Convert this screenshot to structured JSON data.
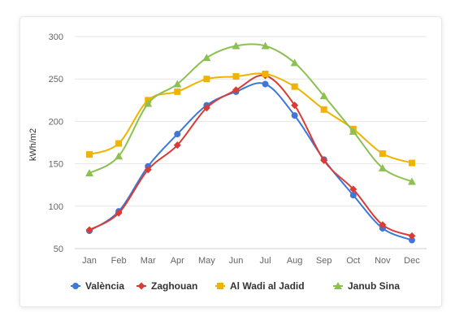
{
  "chart_data": {
    "type": "line",
    "title": "",
    "xlabel": "",
    "ylabel": "kWh/m2",
    "ylim": [
      50,
      300
    ],
    "yticks": [
      50,
      100,
      150,
      200,
      250,
      300
    ],
    "categories": [
      "Jan",
      "Feb",
      "Mar",
      "Apr",
      "May",
      "Jun",
      "Jul",
      "Aug",
      "Sep",
      "Oct",
      "Nov",
      "Dec"
    ],
    "grid": "horizontal",
    "legend": "bottom",
    "series": [
      {
        "name": "València",
        "color": "#3c78d8",
        "marker": "circle",
        "values": [
          71,
          94,
          147,
          185,
          219,
          235,
          244,
          207,
          155,
          113,
          74,
          60
        ]
      },
      {
        "name": "Zaghouan",
        "color": "#db3b34",
        "marker": "diamond",
        "values": [
          72,
          92,
          143,
          172,
          216,
          237,
          254,
          219,
          154,
          120,
          78,
          65
        ]
      },
      {
        "name": "Al Wadi al Jadid",
        "color": "#f0b400",
        "marker": "square",
        "values": [
          161,
          174,
          225,
          235,
          250,
          253,
          256,
          241,
          214,
          191,
          162,
          151
        ]
      },
      {
        "name": "Janub Sina",
        "color": "#8cc152",
        "marker": "triangle",
        "values": [
          139,
          159,
          221,
          244,
          275,
          289,
          289,
          269,
          230,
          188,
          145,
          129
        ]
      }
    ]
  }
}
